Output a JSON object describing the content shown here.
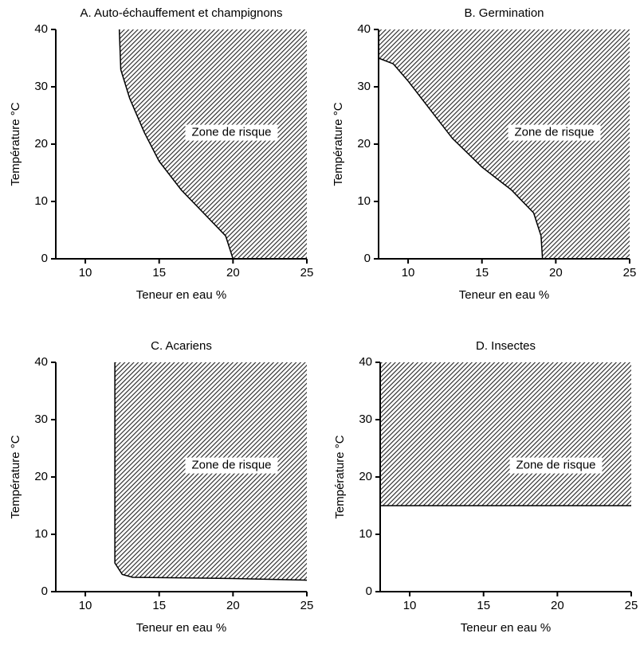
{
  "chart_data": [
    {
      "type": "area",
      "title": "A. Auto-échauffement et champignons",
      "x_label": "Teneur en eau %",
      "y_label": "Température °C",
      "annotation": "Zone de risque",
      "xlim": [
        8,
        25
      ],
      "ylim": [
        0,
        40
      ],
      "xticks": [
        10,
        15,
        20,
        25
      ],
      "yticks": [
        0,
        10,
        20,
        30,
        40
      ],
      "x": [
        12.3,
        12.4,
        13,
        14,
        15,
        16.5,
        18,
        19.5,
        20
      ],
      "values": [
        40,
        33,
        28,
        22,
        17,
        12,
        8,
        4,
        0
      ]
    },
    {
      "type": "area",
      "title": "B. Germination",
      "x_label": "Teneur en eau %",
      "y_label": "Température °C",
      "annotation": "Zone de risque",
      "xlim": [
        8,
        25
      ],
      "ylim": [
        0,
        40
      ],
      "xticks": [
        10,
        15,
        20,
        25
      ],
      "yticks": [
        0,
        10,
        20,
        30,
        40
      ],
      "x": [
        8,
        9,
        10,
        11.5,
        13,
        15,
        17,
        18.5,
        19,
        19.1
      ],
      "values": [
        35,
        34,
        31,
        26,
        21,
        16,
        12,
        8,
        4,
        0
      ]
    },
    {
      "type": "area",
      "title": "C. Acariens",
      "x_label": "Teneur en eau %",
      "y_label": "Température °C",
      "annotation": "Zone de risque",
      "xlim": [
        8,
        25
      ],
      "ylim": [
        0,
        40
      ],
      "xticks": [
        10,
        15,
        20,
        25
      ],
      "yticks": [
        0,
        10,
        20,
        30,
        40
      ],
      "x": [
        12,
        12,
        12.5,
        13.2,
        20,
        25
      ],
      "values": [
        40,
        5,
        3,
        2.5,
        2.3,
        2
      ]
    },
    {
      "type": "area",
      "title": "D. Insectes",
      "x_label": "Teneur en eau %",
      "y_label": "Température °C",
      "annotation": "Zone de risque",
      "xlim": [
        8,
        25
      ],
      "ylim": [
        0,
        40
      ],
      "xticks": [
        10,
        15,
        20,
        25
      ],
      "yticks": [
        0,
        10,
        20,
        30,
        40
      ],
      "x": [
        8,
        25
      ],
      "values": [
        15,
        15
      ]
    }
  ]
}
